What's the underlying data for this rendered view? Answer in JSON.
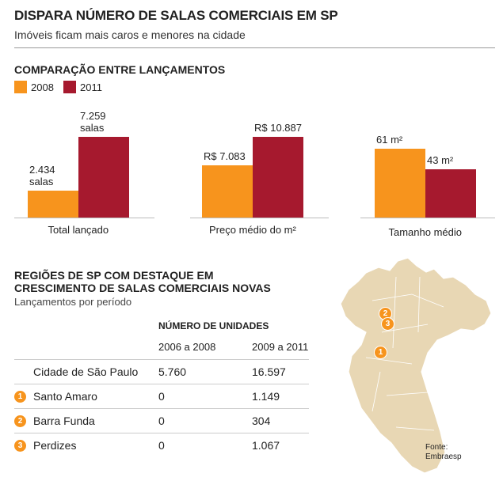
{
  "header": {
    "title": "DISPARA NÚMERO DE SALAS COMERCIAIS EM SP",
    "subtitle": "Imóveis ficam mais caros e menores na cidade"
  },
  "comparison_title": "COMPARAÇÃO ENTRE LANÇAMENTOS",
  "chart_data": [
    {
      "type": "bar",
      "xlabel": "Total lançado",
      "series": [
        {
          "name": "2008",
          "color": "#f7941d",
          "values": [
            2434
          ],
          "value_labels": [
            "2.434 salas"
          ]
        },
        {
          "name": "2011",
          "color": "#a6192e",
          "values": [
            7259
          ],
          "value_labels": [
            "7.259 salas"
          ]
        }
      ]
    },
    {
      "type": "bar",
      "xlabel": "Preço médio do m²",
      "series": [
        {
          "name": "2008",
          "color": "#f7941d",
          "values": [
            7083
          ],
          "value_labels": [
            "R$ 7.083"
          ]
        },
        {
          "name": "2011",
          "color": "#a6192e",
          "values": [
            10887
          ],
          "value_labels": [
            "R$ 10.887"
          ]
        }
      ]
    },
    {
      "type": "bar",
      "xlabel": "Tamanho médio",
      "series": [
        {
          "name": "2008",
          "color": "#f7941d",
          "values": [
            61
          ],
          "value_labels": [
            "61 m²"
          ]
        },
        {
          "name": "2011",
          "color": "#a6192e",
          "values": [
            43
          ],
          "value_labels": [
            "43 m²"
          ]
        }
      ]
    }
  ],
  "table": {
    "title_lines": [
      "REGIÕES DE SP COM DESTAQUE EM",
      "CRESCIMENTO DE SALAS COMERCIAIS NOVAS"
    ],
    "subtitle": "Lançamentos por período",
    "group_header": "NÚMERO DE UNIDADES",
    "columns": [
      "2006 a 2008",
      "2009 a 2011"
    ],
    "rows": [
      {
        "name": "Cidade de São Paulo",
        "values": [
          "5.760",
          "16.597"
        ]
      },
      {
        "marker": "1",
        "name": "Santo Amaro",
        "values": [
          "0",
          "1.149"
        ]
      },
      {
        "marker": "2",
        "name": "Barra Funda",
        "values": [
          "0",
          "304"
        ]
      },
      {
        "marker": "3",
        "name": "Perdizes",
        "values": [
          "0",
          "1.067"
        ]
      }
    ]
  },
  "source": "Fonte: Embraesp"
}
